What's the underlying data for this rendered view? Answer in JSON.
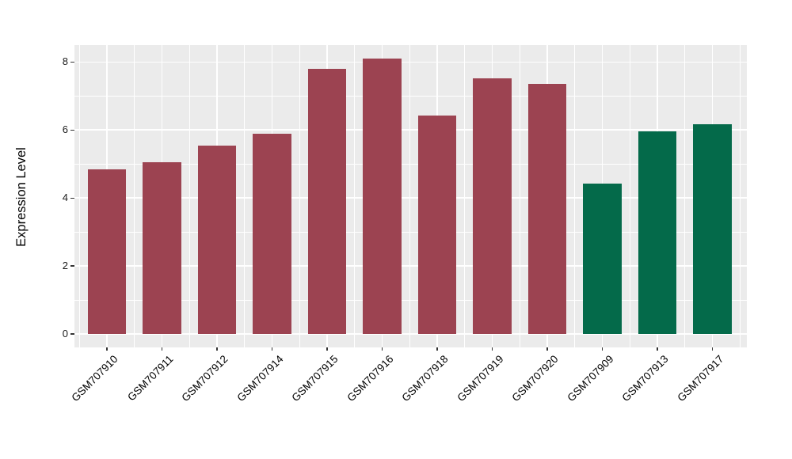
{
  "chart_data": {
    "type": "bar",
    "title": "",
    "xlabel": "",
    "ylabel": "Expression Level",
    "categories": [
      "GSM707910",
      "GSM707911",
      "GSM707912",
      "GSM707914",
      "GSM707915",
      "GSM707916",
      "GSM707918",
      "GSM707919",
      "GSM707920",
      "GSM707909",
      "GSM707913",
      "GSM707917"
    ],
    "values": [
      4.85,
      5.05,
      5.53,
      5.88,
      7.79,
      8.1,
      6.42,
      7.51,
      7.35,
      4.42,
      5.97,
      6.17
    ],
    "bar_colors": [
      "#9C4351",
      "#9C4351",
      "#9C4351",
      "#9C4351",
      "#9C4351",
      "#9C4351",
      "#9C4351",
      "#9C4351",
      "#9C4351",
      "#046A4A",
      "#046A4A",
      "#046A4A"
    ],
    "group_colors": {
      "maroon": "#9C4351",
      "green": "#046A4A"
    },
    "yticks": [
      0,
      2,
      4,
      6,
      8
    ],
    "yticks_minor": [
      1,
      3,
      5,
      7
    ],
    "ylim": [
      -0.4,
      8.5
    ],
    "grid": "on",
    "legend": "none",
    "panel_bg": "#EBEBEB",
    "grid_color": "#FFFFFF"
  }
}
